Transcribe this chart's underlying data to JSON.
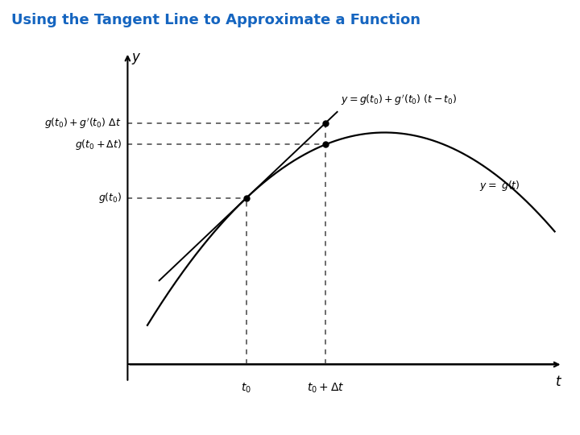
{
  "title": "Using the Tangent Line to Approximate a Function",
  "title_color": "#1565C0",
  "title_fontsize": 13,
  "background_color": "#ffffff",
  "t0": 3.0,
  "dt": 2.0,
  "curve_color": "#000000",
  "tangent_color": "#000000",
  "dashed_color": "#444444",
  "dot_color": "#000000",
  "label_tangent_line": "$y=g(t_0)+g'(t_0)\\ (t-t_0)$",
  "label_curve": "$y=\\ g(t)$",
  "label_gt0": "$g(t_0)$",
  "label_gt0_dt": "$g(t_0+\\Delta t)$",
  "label_tangent_val": "$g(t_0)+g'(t_0)\\ \\Delta t$",
  "label_t0": "$t_0$",
  "label_t0_dt": "$t_0+\\Delta t$",
  "label_y": "$y$",
  "label_t": "$t$",
  "xlim": [
    0.0,
    11.0
  ],
  "ylim": [
    -0.8,
    7.0
  ],
  "curve_peak_t": 6.5,
  "curve_peak_y": 5.2,
  "curve_a": -0.12
}
